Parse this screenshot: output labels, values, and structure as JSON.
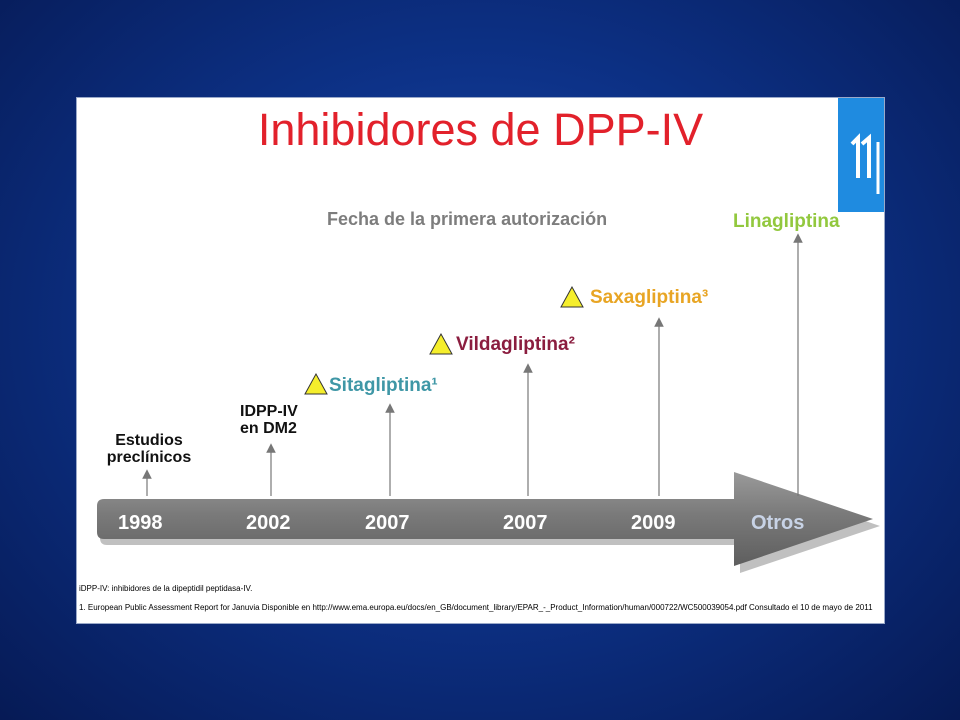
{
  "title": "Inhibidores de DPP-IV",
  "subtitle": "Fecha de la primera autorización",
  "colors": {
    "title": "#e2212b",
    "subtitle": "#7d7d7d",
    "arrow": "#7f7f7f",
    "sitagliptina": "#3f97a6",
    "vildagliptina": "#8b1d3f",
    "saxagliptina": "#e8a524",
    "linagliptina": "#92c83e",
    "otros": "#c8d3e6",
    "warning_triangle": "#f5ee2c",
    "logo_blue": "#1f8be0"
  },
  "milestones": [
    {
      "year": "1998",
      "label_lines": [
        "Estudios",
        "preclínicos"
      ],
      "warning": false
    },
    {
      "year": "2002",
      "label_lines": [
        "IDPP-IV",
        "en DM2"
      ],
      "warning": false
    },
    {
      "year": "2007",
      "label_lines": [
        "Sitagliptina¹"
      ],
      "warning": true
    },
    {
      "year": "2007",
      "label_lines": [
        "Vildagliptina²"
      ],
      "warning": true
    },
    {
      "year": "2009",
      "label_lines": [
        "Saxagliptina³"
      ],
      "warning": true
    },
    {
      "year": "Otros",
      "label_lines": [
        "Linagliptina"
      ],
      "warning": false
    }
  ],
  "footnotes": {
    "abbreviation": "iDPP-IV: inhibidores de la dipeptidil peptidasa-IV.",
    "reference": "1. European Public Assessment Report for Januvia Disponible en http://www.ema.europa.eu/docs/en_GB/document_library/EPAR_-_Product_Information/human/000722/WC500039054.pdf Consultado el 10 de mayo de 2011"
  }
}
